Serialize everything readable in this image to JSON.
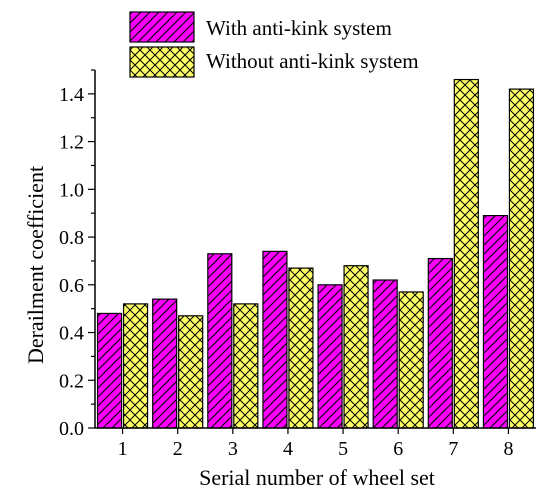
{
  "chart_data": {
    "type": "bar",
    "categories": [
      "1",
      "2",
      "3",
      "4",
      "5",
      "6",
      "7",
      "8"
    ],
    "series": [
      {
        "name": "With anti-kink system",
        "values": [
          0.48,
          0.54,
          0.73,
          0.74,
          0.6,
          0.62,
          0.71,
          0.89
        ],
        "color": "#ff00ff",
        "pattern": "diagonal-hatch"
      },
      {
        "name": "Without anti-kink system",
        "values": [
          0.52,
          0.47,
          0.52,
          0.67,
          0.68,
          0.57,
          1.46,
          1.42
        ],
        "color": "#ffff66",
        "pattern": "cross-hatch"
      }
    ],
    "xlabel": "Serial number of wheel set",
    "ylabel": "Derailment coefficient",
    "ylim": [
      0,
      1.5
    ],
    "yticks": [
      "0.0",
      "0.2",
      "0.4",
      "0.6",
      "0.8",
      "1.0",
      "1.2",
      "1.4"
    ],
    "grid": false,
    "legend_position": "top"
  }
}
